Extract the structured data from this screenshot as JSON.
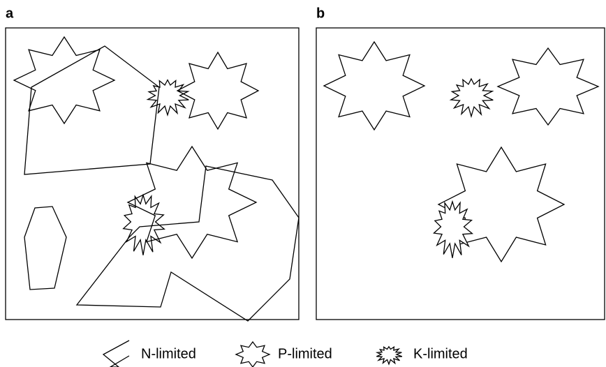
{
  "panels": [
    {
      "label": "a"
    },
    {
      "label": "b"
    }
  ],
  "legend": [
    {
      "label": "N-limited"
    },
    {
      "label": "P-limited"
    },
    {
      "label": "K-limited"
    }
  ]
}
